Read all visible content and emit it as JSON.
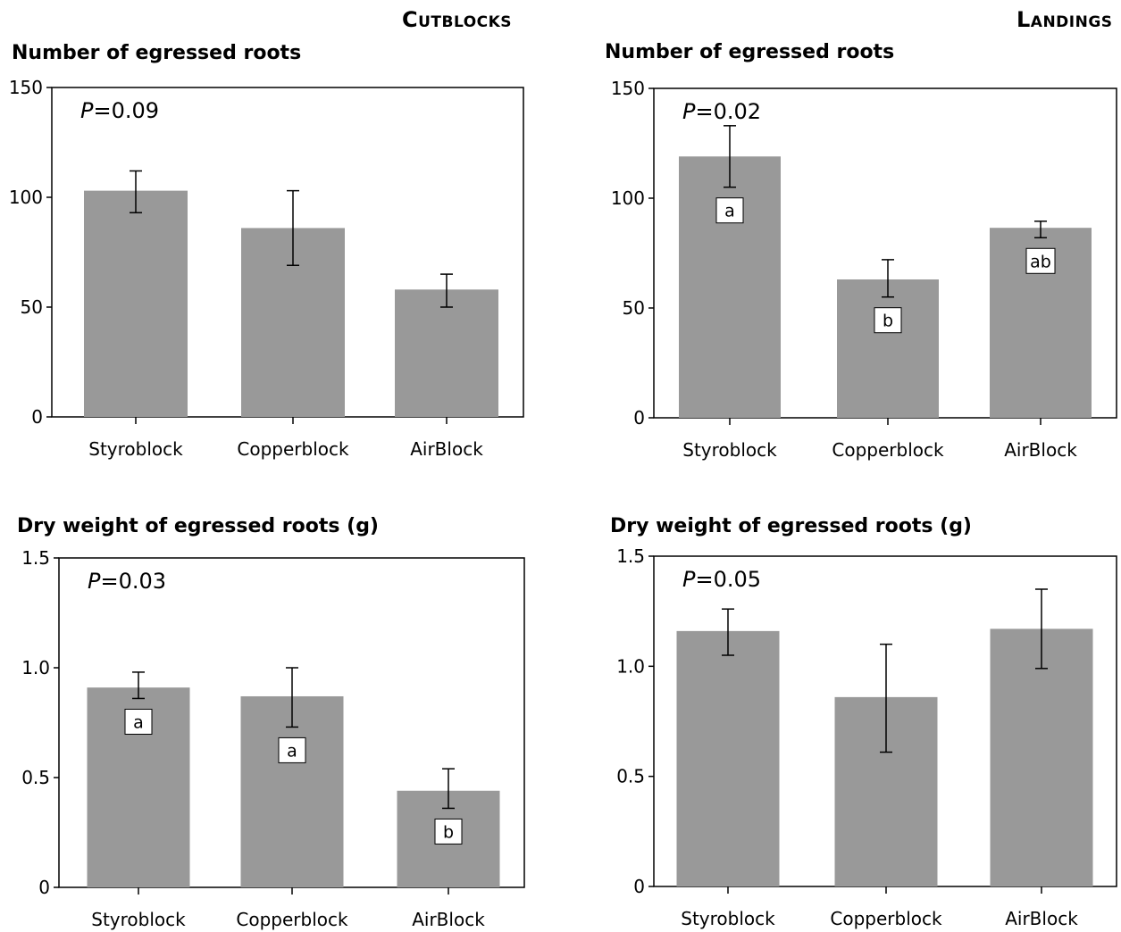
{
  "headers": {
    "left": "Cutblocks",
    "right": "Landings"
  },
  "colors": {
    "bar": "#999999",
    "axis": "#000000",
    "label_box": "#ffffff"
  },
  "chart_data": [
    {
      "type": "bar",
      "title": "Number of egressed roots",
      "column": "Cutblocks",
      "pvalue_label": "P",
      "pvalue_text": "=0.09",
      "categories": [
        "Styroblock",
        "Copperblock",
        "AirBlock"
      ],
      "values": [
        103,
        86,
        58
      ],
      "error_low": [
        93,
        69,
        50
      ],
      "error_high": [
        112,
        103,
        65
      ],
      "letters": [
        "",
        "",
        ""
      ],
      "ylim": [
        0,
        150
      ],
      "yticks": [
        0,
        50,
        100,
        150
      ],
      "ytick_labels": [
        "0",
        "50",
        "100",
        "150"
      ]
    },
    {
      "type": "bar",
      "title": "Number of egressed roots",
      "column": "Landings",
      "pvalue_label": "P",
      "pvalue_text": "=0.02",
      "categories": [
        "Styroblock",
        "Copperblock",
        "AirBlock"
      ],
      "values": [
        119,
        63,
        86.5
      ],
      "error_low": [
        105,
        55,
        82
      ],
      "error_high": [
        133,
        72,
        89.5
      ],
      "letters": [
        "a",
        "b",
        "ab"
      ],
      "ylim": [
        0,
        150
      ],
      "yticks": [
        0,
        50,
        100,
        150
      ],
      "ytick_labels": [
        "0",
        "50",
        "100",
        "150"
      ]
    },
    {
      "type": "bar",
      "title": "Dry weight of egressed roots (g)",
      "column": "Cutblocks",
      "pvalue_label": "P",
      "pvalue_text": "=0.03",
      "categories": [
        "Styroblock",
        "Copperblock",
        "AirBlock"
      ],
      "values": [
        0.91,
        0.87,
        0.44
      ],
      "error_low": [
        0.86,
        0.73,
        0.36
      ],
      "error_high": [
        0.98,
        1.0,
        0.54
      ],
      "letters": [
        "a",
        "a",
        "b"
      ],
      "ylim": [
        0,
        1.5
      ],
      "yticks": [
        0,
        0.5,
        1.0,
        1.5
      ],
      "ytick_labels": [
        "0",
        "0.5",
        "1.0",
        "1.5"
      ]
    },
    {
      "type": "bar",
      "title": "Dry weight of egressed roots (g)",
      "column": "Landings",
      "pvalue_label": "P",
      "pvalue_text": "=0.05",
      "categories": [
        "Styroblock",
        "Copperblock",
        "AirBlock"
      ],
      "values": [
        1.16,
        0.86,
        1.17
      ],
      "error_low": [
        1.05,
        0.61,
        0.99
      ],
      "error_high": [
        1.26,
        1.1,
        1.35
      ],
      "letters": [
        "",
        "",
        ""
      ],
      "ylim": [
        0,
        1.5
      ],
      "yticks": [
        0,
        0.5,
        1.0,
        1.5
      ],
      "ytick_labels": [
        "0",
        "0.5",
        "1.0",
        "1.5"
      ]
    }
  ]
}
